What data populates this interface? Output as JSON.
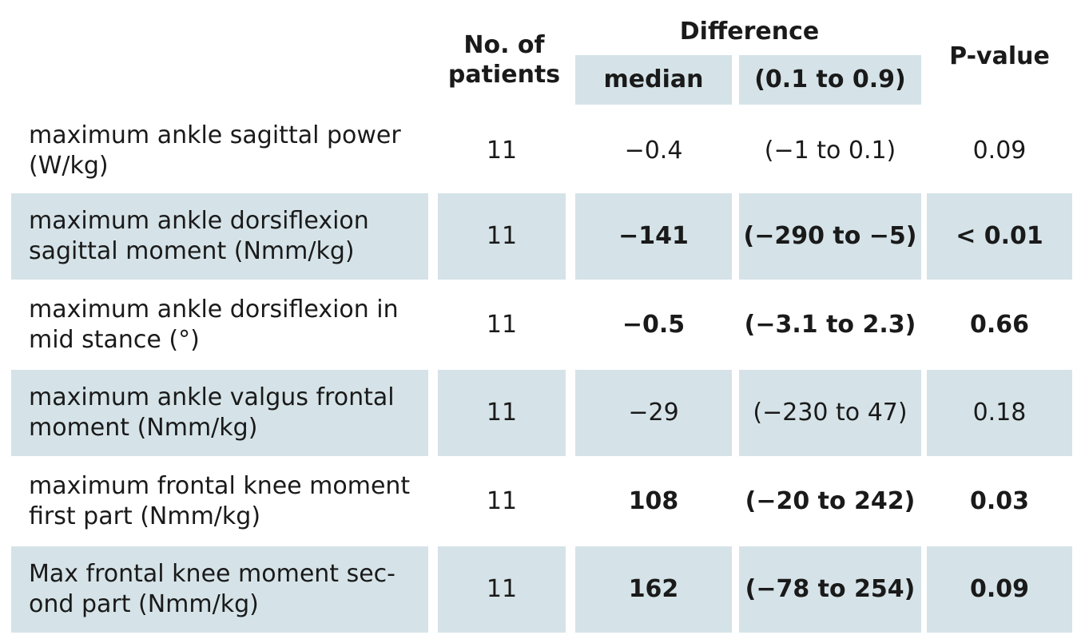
{
  "header": {
    "patients": "No. of patients",
    "difference": "Difference",
    "median": "median",
    "range": "(0.1 to 0.9)",
    "pvalue": "P-value"
  },
  "rows": [
    {
      "label": "maximum ankle sagittal power (W/kg)",
      "patients": "11",
      "median": "−0.4",
      "range": "(−1 to 0.1)",
      "pvalue": "0.09",
      "bold": false,
      "shaded": false
    },
    {
      "label": "maximum ankle dorsiflexion sagittal moment (Nmm/kg)",
      "patients": "11",
      "median": "−141",
      "range": "(−290 to −5)",
      "pvalue": "< 0.01",
      "bold": true,
      "shaded": true
    },
    {
      "label": "maximum ankle dorsiflexion in mid stance (°)",
      "patients": "11",
      "median": "−0.5",
      "range": "(−3.1 to 2.3)",
      "pvalue": "0.66",
      "bold": true,
      "shaded": false
    },
    {
      "label": "maximum ankle valgus frontal moment (Nmm/kg)",
      "patients": "11",
      "median": "−29",
      "range": "(−230 to 47)",
      "pvalue": "0.18",
      "bold": false,
      "shaded": true
    },
    {
      "label": "maximum frontal knee moment first part (Nmm/kg)",
      "patients": "11",
      "median": "108",
      "range": "(−20 to 242)",
      "pvalue": "0.03",
      "bold": true,
      "shaded": false
    },
    {
      "label": "Max frontal knee moment sec-ond part (Nmm/kg)",
      "patients": "11",
      "median": "162",
      "range": "(−78 to 254)",
      "pvalue": "0.09",
      "bold": true,
      "shaded": true
    }
  ],
  "colors": {
    "shade": "#d5e3e8",
    "text": "#1a1a1a"
  }
}
